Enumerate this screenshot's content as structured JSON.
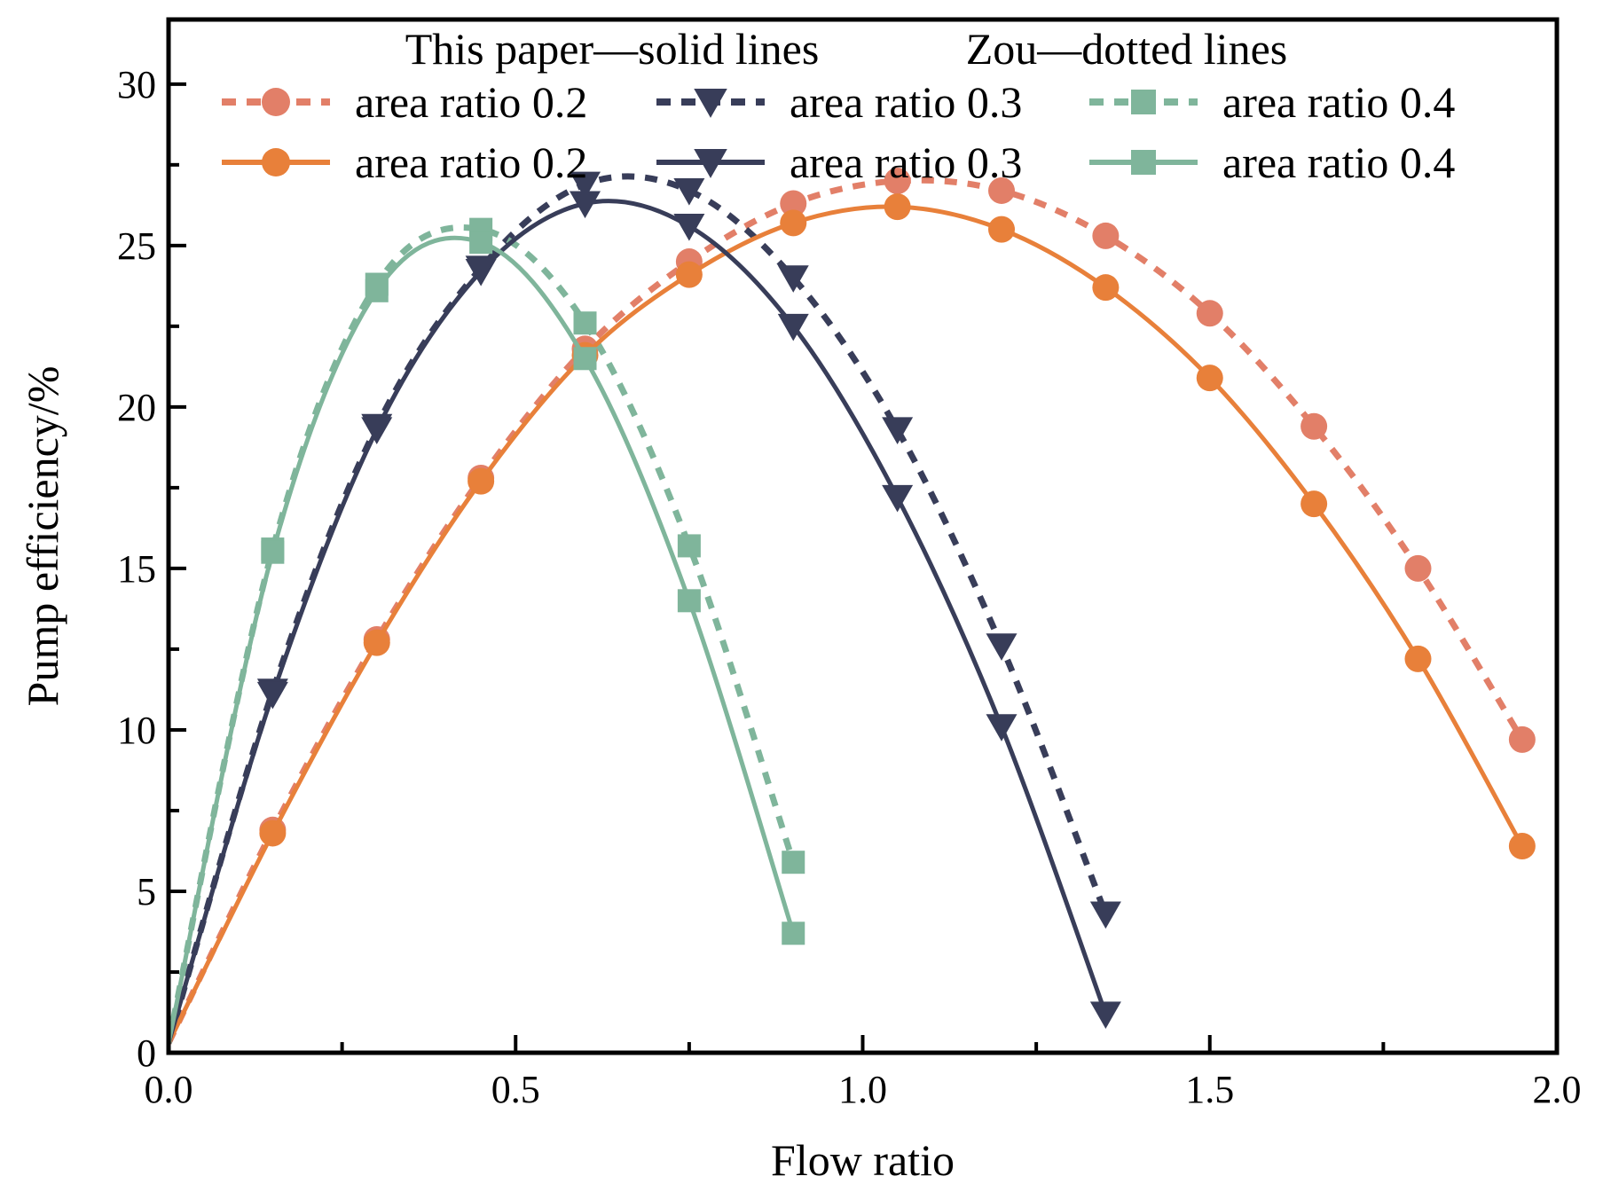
{
  "chart_data": {
    "type": "line",
    "title": "",
    "xlabel": "Flow ratio",
    "ylabel": "Pump efficiency/%",
    "xlim": [
      0,
      2.0
    ],
    "ylim": [
      0,
      32
    ],
    "xticks": [
      0.0,
      0.5,
      1.0,
      1.5,
      2.0
    ],
    "xtick_labels": [
      "0.0",
      "0.5",
      "1.0",
      "1.5",
      "2.0"
    ],
    "yticks": [
      0,
      5,
      10,
      15,
      20,
      25,
      30
    ],
    "ytick_labels": [
      "0",
      "5",
      "10",
      "15",
      "20",
      "25",
      "30"
    ],
    "legend": {
      "position": "top",
      "header_left": "This paper—solid lines",
      "header_right": "Zou—dotted lines"
    },
    "series": [
      {
        "name": "area ratio 0.2",
        "source": "Zou",
        "style": "dotted",
        "marker": "circle",
        "color": "#E27F68",
        "x": [
          0,
          0.15,
          0.3,
          0.45,
          0.6,
          0.75,
          0.9,
          1.05,
          1.2,
          1.35,
          1.5,
          1.65,
          1.8,
          1.95
        ],
        "y": [
          0.3,
          6.9,
          12.8,
          17.8,
          21.8,
          24.5,
          26.3,
          27.0,
          26.7,
          25.3,
          22.9,
          19.4,
          15.0,
          9.7
        ]
      },
      {
        "name": "area ratio 0.3",
        "source": "Zou",
        "style": "dotted",
        "marker": "triangle-down",
        "color": "#383D59",
        "x": [
          0,
          0.15,
          0.3,
          0.45,
          0.6,
          0.75,
          0.9,
          1.05,
          1.2,
          1.35
        ],
        "y": [
          0.3,
          11.2,
          19.4,
          24.3,
          26.9,
          26.7,
          24.0,
          19.3,
          12.6,
          4.3
        ]
      },
      {
        "name": "area ratio 0.4",
        "source": "Zou",
        "style": "dotted",
        "marker": "square",
        "color": "#7FB59B",
        "x": [
          0,
          0.15,
          0.3,
          0.45,
          0.6,
          0.75,
          0.9
        ],
        "y": [
          0.3,
          15.6,
          23.8,
          25.5,
          22.6,
          15.7,
          5.9
        ]
      },
      {
        "name": "area ratio 0.2",
        "source": "This paper",
        "style": "solid",
        "marker": "circle",
        "color": "#E8803A",
        "x": [
          0,
          0.15,
          0.3,
          0.45,
          0.6,
          0.75,
          0.9,
          1.05,
          1.2,
          1.35,
          1.5,
          1.65,
          1.8,
          1.95
        ],
        "y": [
          0.3,
          6.8,
          12.7,
          17.7,
          21.6,
          24.1,
          25.7,
          26.2,
          25.5,
          23.7,
          20.9,
          17.0,
          12.2,
          6.4
        ]
      },
      {
        "name": "area ratio 0.3",
        "source": "This paper",
        "style": "solid",
        "marker": "triangle-down",
        "color": "#383D59",
        "x": [
          0,
          0.15,
          0.3,
          0.45,
          0.6,
          0.75,
          0.9,
          1.05,
          1.2,
          1.35
        ],
        "y": [
          0.3,
          11.1,
          19.3,
          24.2,
          26.3,
          25.6,
          22.5,
          17.2,
          10.1,
          1.2
        ]
      },
      {
        "name": "area ratio 0.4",
        "source": "This paper",
        "style": "solid",
        "marker": "square",
        "color": "#7FB59B",
        "x": [
          0,
          0.15,
          0.3,
          0.45,
          0.6,
          0.75,
          0.9
        ],
        "y": [
          0.3,
          15.5,
          23.6,
          25.1,
          21.5,
          14.0,
          3.7
        ]
      }
    ]
  }
}
